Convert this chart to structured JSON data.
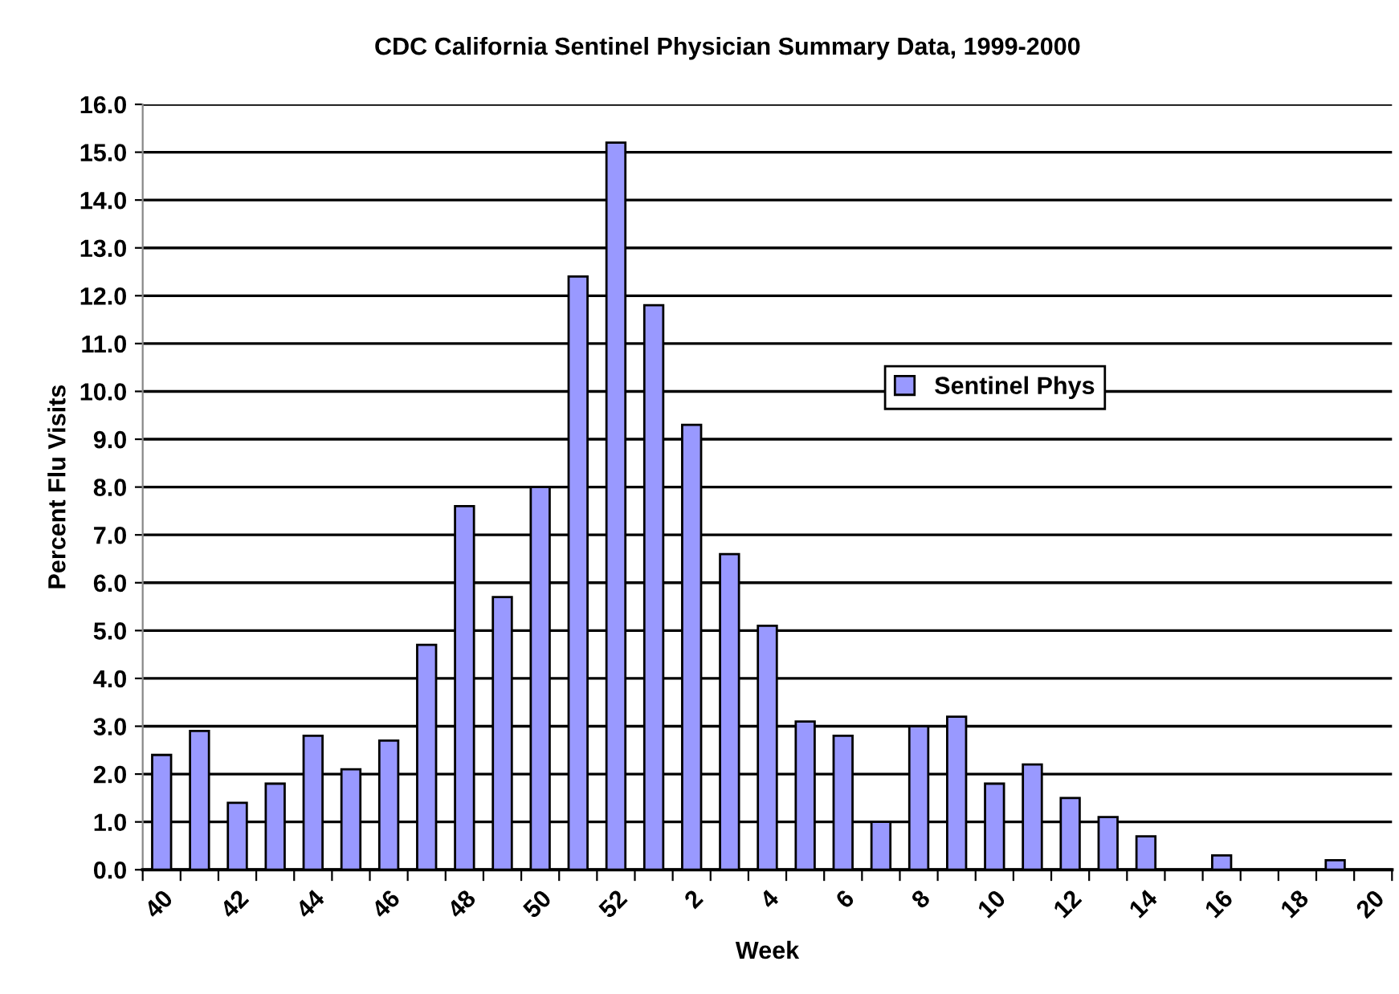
{
  "chart_data": {
    "type": "bar",
    "title": "CDC California Sentinel Physician Summary Data, 1999-2000",
    "xlabel": "Week",
    "ylabel": "Percent Flu Visits",
    "categories": [
      "40",
      null,
      "42",
      null,
      "44",
      null,
      "46",
      null,
      "48",
      null,
      "50",
      null,
      "52",
      null,
      "2",
      null,
      "4",
      null,
      "6",
      null,
      "8",
      null,
      "10",
      null,
      "12",
      null,
      "14",
      null,
      "16",
      null,
      "18",
      null,
      "20"
    ],
    "series": [
      {
        "name": "Sentinel Phys",
        "color": "#9999ff",
        "values": [
          2.4,
          2.9,
          1.4,
          1.8,
          2.8,
          2.1,
          2.7,
          4.7,
          7.6,
          5.7,
          8.0,
          12.4,
          15.2,
          11.8,
          9.3,
          6.6,
          5.1,
          3.1,
          2.8,
          1.0,
          3.0,
          3.2,
          1.8,
          2.2,
          1.5,
          1.1,
          0.7,
          0,
          0.3,
          0,
          0,
          0.2,
          0
        ]
      }
    ],
    "ylim": [
      0,
      16
    ],
    "yticks": [
      {
        "value": 0,
        "label": "0.0"
      },
      {
        "value": 1,
        "label": "1.0"
      },
      {
        "value": 2,
        "label": "2.0"
      },
      {
        "value": 3,
        "label": "3.0"
      },
      {
        "value": 4,
        "label": "4.0"
      },
      {
        "value": 5,
        "label": "5.0"
      },
      {
        "value": 6,
        "label": "6.0"
      },
      {
        "value": 7,
        "label": "7.0"
      },
      {
        "value": 8,
        "label": "8.0"
      },
      {
        "value": 9,
        "label": "9.0"
      },
      {
        "value": 10,
        "label": "10.0"
      },
      {
        "value": 11,
        "label": "11.0"
      },
      {
        "value": 12,
        "label": "12.0"
      },
      {
        "value": 13,
        "label": "13.0"
      },
      {
        "value": 14,
        "label": "14.0"
      },
      {
        "value": 15,
        "label": "15.0"
      },
      {
        "value": 16,
        "label": "16.0"
      }
    ],
    "grid": "y",
    "legend": "right"
  }
}
